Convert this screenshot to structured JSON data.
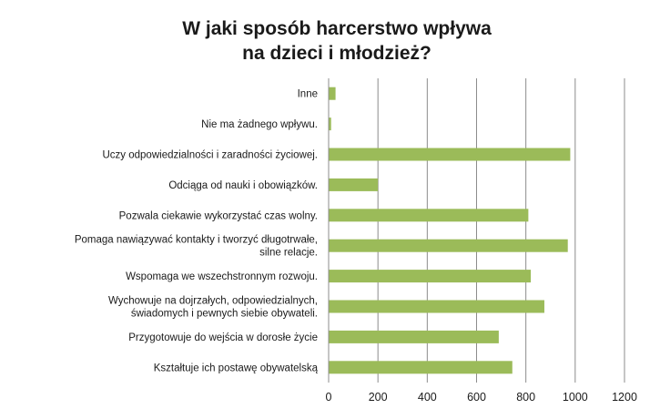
{
  "chart_data": {
    "type": "bar",
    "orientation": "horizontal",
    "title_lines": [
      "W jaki sposób harcerstwo wpływa",
      "na dzieci i młodzież?"
    ],
    "categories": [
      [
        "Inne"
      ],
      [
        "Nie ma żadnego wpływu."
      ],
      [
        "Uczy odpowiedzialności i zaradności życiowej."
      ],
      [
        "Odciąga od nauki i obowiązków."
      ],
      [
        "Pozwala ciekawie wykorzystać czas wolny."
      ],
      [
        "Pomaga nawiązywać kontakty i tworzyć długotrwałe,",
        "silne relacje."
      ],
      [
        "Wspomaga we wszechstronnym rozwoju."
      ],
      [
        "Wychowuje na dojrzałych, odpowiedzialnych,",
        "świadomych i pewnych siebie obywateli."
      ],
      [
        "Przygotowuje do wejścia w dorosłe życie"
      ],
      [
        "Kształtuje ich postawę obywatelską"
      ]
    ],
    "values": [
      28,
      10,
      980,
      200,
      810,
      970,
      820,
      875,
      690,
      745
    ],
    "xlim": [
      0,
      1200
    ],
    "xticks": [
      0,
      200,
      400,
      600,
      800,
      1000,
      1200
    ],
    "grid": true,
    "legend": "none",
    "bar_color": "#9bbb59"
  }
}
